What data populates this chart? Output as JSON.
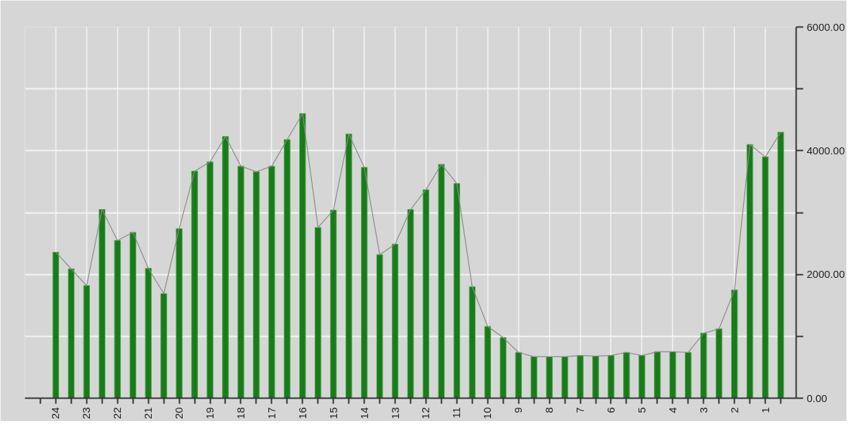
{
  "chart_data": {
    "type": "bar",
    "x": [
      24,
      23.5,
      23,
      22.5,
      22,
      21.5,
      21,
      20.5,
      20,
      19.5,
      19,
      18.5,
      18,
      17.5,
      17,
      16.5,
      16,
      15.5,
      15,
      14.5,
      14,
      13.5,
      13,
      12.5,
      12,
      11.5,
      11,
      10.5,
      10,
      9.5,
      9,
      8.5,
      8,
      7.5,
      7,
      6.5,
      6,
      5.5,
      5,
      4.5,
      4,
      3.5,
      3,
      2.5,
      2,
      1.5,
      1,
      0.5
    ],
    "series": [
      {
        "color": "#1b7a1b",
        "values": [
          2360,
          2090,
          1820,
          3050,
          2550,
          2680,
          2100,
          1690,
          2740,
          3670,
          3820,
          4230,
          3750,
          3660,
          3750,
          4180,
          4600,
          2760,
          3040,
          4270,
          3730,
          2320,
          2490,
          3050,
          3370,
          3780,
          3470,
          1800,
          1160,
          980,
          740,
          670,
          670,
          670,
          690,
          680,
          690,
          740,
          690,
          750,
          750,
          740,
          1050,
          1120,
          1750,
          4100,
          3900,
          4300
        ]
      },
      {
        "type": "line",
        "color": "#8a8a8a",
        "marker": "none",
        "line_style": "solid",
        "values": [
          2360,
          2090,
          1820,
          3050,
          2550,
          2680,
          2100,
          1690,
          2740,
          3670,
          3820,
          4230,
          3750,
          3660,
          3750,
          4180,
          4600,
          2760,
          3040,
          4270,
          3730,
          2320,
          2490,
          3050,
          3370,
          3780,
          3470,
          1800,
          1160,
          980,
          740,
          670,
          670,
          670,
          690,
          680,
          690,
          740,
          690,
          750,
          750,
          740,
          1050,
          1120,
          1750,
          4100,
          3900,
          4300
        ]
      }
    ],
    "xlim": [
      25,
      0
    ],
    "xticks": [
      {
        "value": 24.5,
        "label": null
      },
      {
        "value": 24,
        "label": "24"
      },
      {
        "value": 23.5,
        "label": null
      },
      {
        "value": 23,
        "label": "23"
      },
      {
        "value": 22.5,
        "label": null
      },
      {
        "value": 22,
        "label": "22"
      },
      {
        "value": 21.5,
        "label": null
      },
      {
        "value": 21,
        "label": "21"
      },
      {
        "value": 20.5,
        "label": null
      },
      {
        "value": 20,
        "label": "20"
      },
      {
        "value": 19.5,
        "label": null
      },
      {
        "value": 19,
        "label": "19"
      },
      {
        "value": 18.5,
        "label": null
      },
      {
        "value": 18,
        "label": "18"
      },
      {
        "value": 17.5,
        "label": null
      },
      {
        "value": 17,
        "label": "17"
      },
      {
        "value": 16.5,
        "label": null
      },
      {
        "value": 16,
        "label": "16"
      },
      {
        "value": 15.5,
        "label": null
      },
      {
        "value": 15,
        "label": "15"
      },
      {
        "value": 14.5,
        "label": null
      },
      {
        "value": 14,
        "label": "14"
      },
      {
        "value": 13.5,
        "label": null
      },
      {
        "value": 13,
        "label": "13"
      },
      {
        "value": 12.5,
        "label": null
      },
      {
        "value": 12,
        "label": "12"
      },
      {
        "value": 11.5,
        "label": null
      },
      {
        "value": 11,
        "label": "11"
      },
      {
        "value": 10.5,
        "label": null
      },
      {
        "value": 10,
        "label": "10"
      },
      {
        "value": 9.5,
        "label": null
      },
      {
        "value": 9,
        "label": "9"
      },
      {
        "value": 8.5,
        "label": null
      },
      {
        "value": 8,
        "label": "8"
      },
      {
        "value": 7.5,
        "label": null
      },
      {
        "value": 7,
        "label": "7"
      },
      {
        "value": 6.5,
        "label": null
      },
      {
        "value": 6,
        "label": "6"
      },
      {
        "value": 5.5,
        "label": null
      },
      {
        "value": 5,
        "label": "5"
      },
      {
        "value": 4.5,
        "label": null
      },
      {
        "value": 4,
        "label": "4"
      },
      {
        "value": 3.5,
        "label": null
      },
      {
        "value": 3,
        "label": "3"
      },
      {
        "value": 2.5,
        "label": null
      },
      {
        "value": 2,
        "label": "2"
      },
      {
        "value": 1.5,
        "label": null
      },
      {
        "value": 1,
        "label": "1"
      },
      {
        "value": 0.5,
        "label": null
      }
    ],
    "ylim": [
      0,
      6000
    ],
    "yticks": [
      {
        "value": 0,
        "label": "0.00"
      },
      {
        "value": 1000,
        "label": null
      },
      {
        "value": 2000,
        "label": "2000.00"
      },
      {
        "value": 3000,
        "label": null
      },
      {
        "value": 4000,
        "label": "4000.00"
      },
      {
        "value": 5000,
        "label": null
      },
      {
        "value": 6000,
        "label": "6000.00"
      }
    ],
    "grid": true
  }
}
